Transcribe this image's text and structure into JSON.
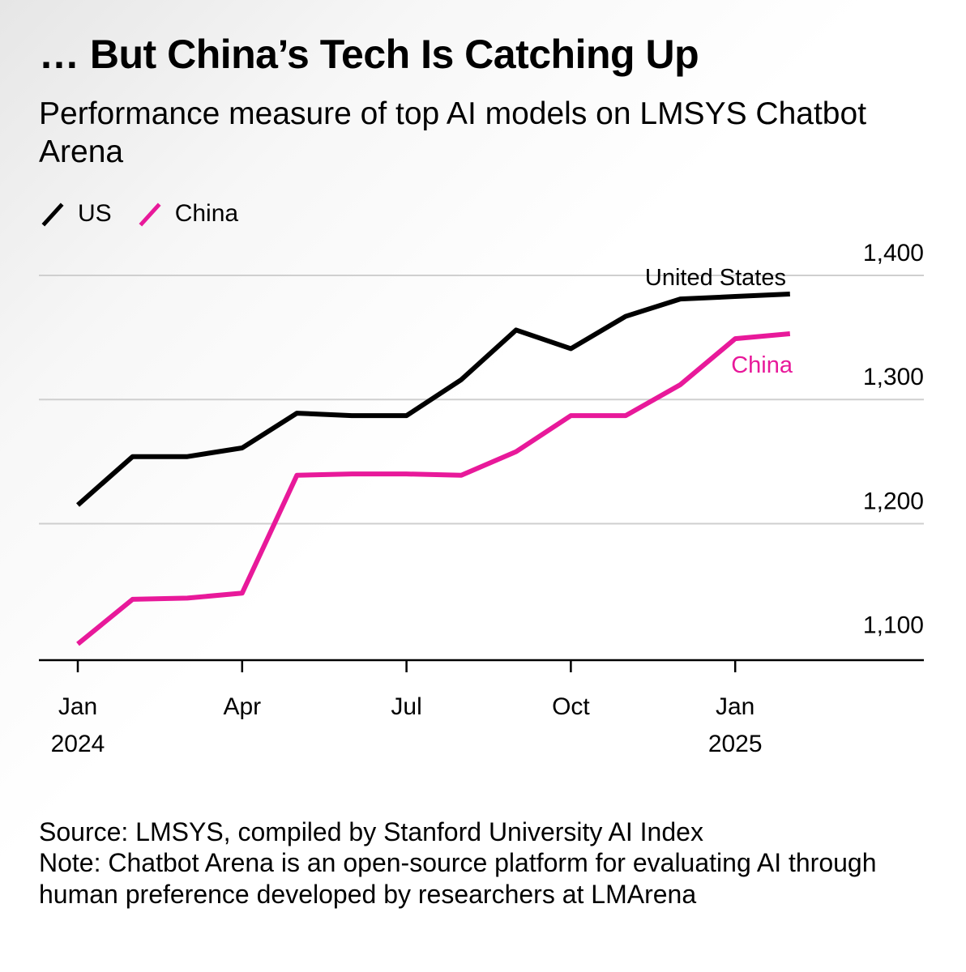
{
  "chart_data": {
    "type": "line",
    "title": "… But China’s Tech Is Catching Up",
    "subtitle": "Performance measure of top AI models on LMSYS Chatbot Arena",
    "xlabel": "",
    "ylabel": "",
    "ylim": [
      1090,
      1400
    ],
    "yticks": [
      1100,
      1200,
      1300,
      1400
    ],
    "ytick_labels": [
      "1,100",
      "1,200",
      "1,300",
      "1,400"
    ],
    "xticks": [
      {
        "month": 0,
        "line1": "Jan",
        "line2": "2024"
      },
      {
        "month": 3,
        "line1": "Apr",
        "line2": ""
      },
      {
        "month": 6,
        "line1": "Jul",
        "line2": ""
      },
      {
        "month": 9,
        "line1": "Oct",
        "line2": ""
      },
      {
        "month": 12,
        "line1": "Jan",
        "line2": "2025"
      }
    ],
    "grid": true,
    "legend_position": "top-left",
    "x": [
      0,
      1,
      2,
      3,
      4,
      5,
      6,
      7,
      8,
      9,
      10,
      11,
      12,
      13
    ],
    "series": [
      {
        "name": "US",
        "label": "United States",
        "color": "#000000",
        "values": [
          1215,
          1254,
          1254,
          1261,
          1289,
          1287,
          1287,
          1316,
          1356,
          1341,
          1367,
          1381,
          1383,
          1385
        ]
      },
      {
        "name": "China",
        "label": "China",
        "color": "#e8199a",
        "values": [
          1103,
          1139,
          1140,
          1144,
          1239,
          1240,
          1240,
          1239,
          1258,
          1287,
          1287,
          1312,
          1349,
          1353
        ]
      }
    ]
  },
  "footer": {
    "source": "Source: LMSYS, compiled by Stanford University AI Index",
    "note": "Note: Chatbot Arena is an open-source platform for evaluating AI through human preference developed by researchers at LMArena"
  }
}
